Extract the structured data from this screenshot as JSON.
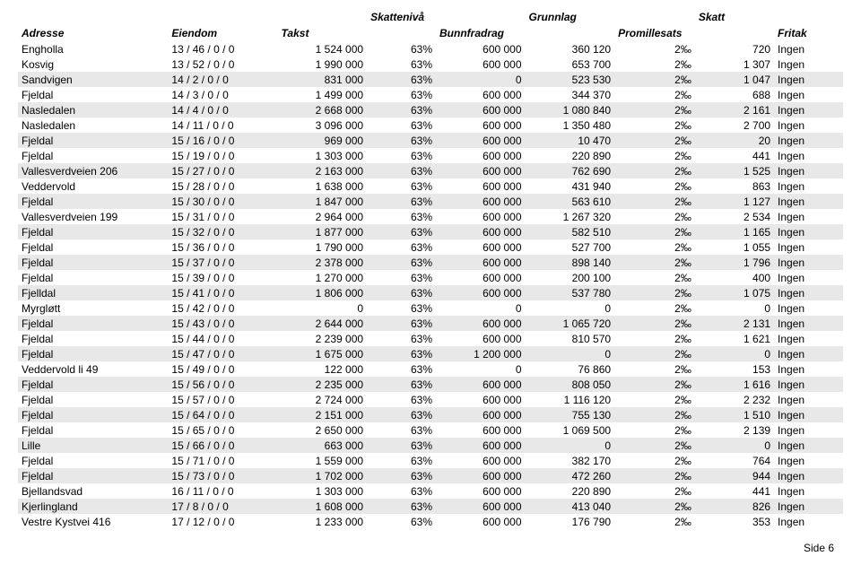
{
  "headers": {
    "row1": {
      "skattniva": "Skattenivå",
      "grunnlag": "Grunnlag",
      "skatt": "Skatt"
    },
    "row2": {
      "adresse": "Adresse",
      "eiendom": "Eiendom",
      "takst": "Takst",
      "bunnfradrag": "Bunnfradrag",
      "promillesats": "Promillesats",
      "fritak": "Fritak"
    }
  },
  "footer": "Side 6",
  "styling": {
    "font_family": "Arial",
    "font_size_pt": 9,
    "header_italic": true,
    "header_bold": true,
    "row_shade_color": "#e8e8e8",
    "background_color": "#ffffff",
    "text_color": "#000000"
  },
  "columns": [
    {
      "key": "adresse",
      "align": "left"
    },
    {
      "key": "eiendom",
      "align": "left"
    },
    {
      "key": "takst",
      "align": "right"
    },
    {
      "key": "skattniva",
      "align": "right"
    },
    {
      "key": "bunnfradrag",
      "align": "right"
    },
    {
      "key": "grunnlag",
      "align": "right"
    },
    {
      "key": "promille",
      "align": "right"
    },
    {
      "key": "skatt",
      "align": "right"
    },
    {
      "key": "fritak",
      "align": "left"
    }
  ],
  "rows": [
    {
      "shade": false,
      "adresse": "Engholla",
      "eiendom": "13 / 46 / 0 / 0",
      "takst": "1 524 000",
      "skattniva": "63%",
      "bunnfradrag": "600 000",
      "grunnlag": "360 120",
      "promille": "2‰",
      "skatt": "720",
      "fritak": "Ingen"
    },
    {
      "shade": false,
      "adresse": "Kosvig",
      "eiendom": "13 / 52 / 0 / 0",
      "takst": "1 990 000",
      "skattniva": "63%",
      "bunnfradrag": "600 000",
      "grunnlag": "653 700",
      "promille": "2‰",
      "skatt": "1 307",
      "fritak": "Ingen"
    },
    {
      "shade": true,
      "adresse": "Sandvigen",
      "eiendom": "14 / 2 / 0 / 0",
      "takst": "831 000",
      "skattniva": "63%",
      "bunnfradrag": "0",
      "grunnlag": "523 530",
      "promille": "2‰",
      "skatt": "1 047",
      "fritak": "Ingen"
    },
    {
      "shade": false,
      "adresse": "Fjeldal",
      "eiendom": "14 / 3 / 0 / 0",
      "takst": "1 499 000",
      "skattniva": "63%",
      "bunnfradrag": "600 000",
      "grunnlag": "344 370",
      "promille": "2‰",
      "skatt": "688",
      "fritak": "Ingen"
    },
    {
      "shade": true,
      "adresse": "Nasledalen",
      "eiendom": "14 / 4 / 0 / 0",
      "takst": "2 668 000",
      "skattniva": "63%",
      "bunnfradrag": "600 000",
      "grunnlag": "1 080 840",
      "promille": "2‰",
      "skatt": "2 161",
      "fritak": "Ingen"
    },
    {
      "shade": false,
      "adresse": "Nasledalen",
      "eiendom": "14 / 11 / 0 / 0",
      "takst": "3 096 000",
      "skattniva": "63%",
      "bunnfradrag": "600 000",
      "grunnlag": "1 350 480",
      "promille": "2‰",
      "skatt": "2 700",
      "fritak": "Ingen"
    },
    {
      "shade": true,
      "adresse": "Fjeldal",
      "eiendom": "15 / 16 / 0 / 0",
      "takst": "969 000",
      "skattniva": "63%",
      "bunnfradrag": "600 000",
      "grunnlag": "10 470",
      "promille": "2‰",
      "skatt": "20",
      "fritak": "Ingen"
    },
    {
      "shade": false,
      "adresse": "Fjeldal",
      "eiendom": "15 / 19 / 0 / 0",
      "takst": "1 303 000",
      "skattniva": "63%",
      "bunnfradrag": "600 000",
      "grunnlag": "220 890",
      "promille": "2‰",
      "skatt": "441",
      "fritak": "Ingen"
    },
    {
      "shade": true,
      "adresse": "Vallesverdveien 206",
      "eiendom": "15 / 27 / 0 / 0",
      "takst": "2 163 000",
      "skattniva": "63%",
      "bunnfradrag": "600 000",
      "grunnlag": "762 690",
      "promille": "2‰",
      "skatt": "1 525",
      "fritak": "Ingen"
    },
    {
      "shade": false,
      "adresse": "Veddervold",
      "eiendom": "15 / 28 / 0 / 0",
      "takst": "1 638 000",
      "skattniva": "63%",
      "bunnfradrag": "600 000",
      "grunnlag": "431 940",
      "promille": "2‰",
      "skatt": "863",
      "fritak": "Ingen"
    },
    {
      "shade": true,
      "adresse": "Fjeldal",
      "eiendom": "15 / 30 / 0 / 0",
      "takst": "1 847 000",
      "skattniva": "63%",
      "bunnfradrag": "600 000",
      "grunnlag": "563 610",
      "promille": "2‰",
      "skatt": "1 127",
      "fritak": "Ingen"
    },
    {
      "shade": false,
      "adresse": "Vallesverdveien 199",
      "eiendom": "15 / 31 / 0 / 0",
      "takst": "2 964 000",
      "skattniva": "63%",
      "bunnfradrag": "600 000",
      "grunnlag": "1 267 320",
      "promille": "2‰",
      "skatt": "2 534",
      "fritak": "Ingen"
    },
    {
      "shade": true,
      "adresse": "Fjeldal",
      "eiendom": "15 / 32 / 0 / 0",
      "takst": "1 877 000",
      "skattniva": "63%",
      "bunnfradrag": "600 000",
      "grunnlag": "582 510",
      "promille": "2‰",
      "skatt": "1 165",
      "fritak": "Ingen"
    },
    {
      "shade": false,
      "adresse": "Fjeldal",
      "eiendom": "15 / 36 / 0 / 0",
      "takst": "1 790 000",
      "skattniva": "63%",
      "bunnfradrag": "600 000",
      "grunnlag": "527 700",
      "promille": "2‰",
      "skatt": "1 055",
      "fritak": "Ingen"
    },
    {
      "shade": true,
      "adresse": "Fjeldal",
      "eiendom": "15 / 37 / 0 / 0",
      "takst": "2 378 000",
      "skattniva": "63%",
      "bunnfradrag": "600 000",
      "grunnlag": "898 140",
      "promille": "2‰",
      "skatt": "1 796",
      "fritak": "Ingen"
    },
    {
      "shade": false,
      "adresse": "Fjeldal",
      "eiendom": "15 / 39 / 0 / 0",
      "takst": "1 270 000",
      "skattniva": "63%",
      "bunnfradrag": "600 000",
      "grunnlag": "200 100",
      "promille": "2‰",
      "skatt": "400",
      "fritak": "Ingen"
    },
    {
      "shade": true,
      "adresse": "Fjelldal",
      "eiendom": "15 / 41 / 0 / 0",
      "takst": "1 806 000",
      "skattniva": "63%",
      "bunnfradrag": "600 000",
      "grunnlag": "537 780",
      "promille": "2‰",
      "skatt": "1 075",
      "fritak": "Ingen"
    },
    {
      "shade": false,
      "adresse": "Myrgløtt",
      "eiendom": "15 / 42 / 0 / 0",
      "takst": "0",
      "skattniva": "63%",
      "bunnfradrag": "0",
      "grunnlag": "0",
      "promille": "2‰",
      "skatt": "0",
      "fritak": "Ingen"
    },
    {
      "shade": true,
      "adresse": "Fjeldal",
      "eiendom": "15 / 43 / 0 / 0",
      "takst": "2 644 000",
      "skattniva": "63%",
      "bunnfradrag": "600 000",
      "grunnlag": "1 065 720",
      "promille": "2‰",
      "skatt": "2 131",
      "fritak": "Ingen"
    },
    {
      "shade": false,
      "adresse": "Fjeldal",
      "eiendom": "15 / 44 / 0 / 0",
      "takst": "2 239 000",
      "skattniva": "63%",
      "bunnfradrag": "600 000",
      "grunnlag": "810 570",
      "promille": "2‰",
      "skatt": "1 621",
      "fritak": "Ingen"
    },
    {
      "shade": true,
      "adresse": "Fjeldal",
      "eiendom": "15 / 47 / 0 / 0",
      "takst": "1 675 000",
      "skattniva": "63%",
      "bunnfradrag": "1 200 000",
      "grunnlag": "0",
      "promille": "2‰",
      "skatt": "0",
      "fritak": "Ingen"
    },
    {
      "shade": false,
      "adresse": "Veddervold li 49",
      "eiendom": "15 / 49 / 0 / 0",
      "takst": "122 000",
      "skattniva": "63%",
      "bunnfradrag": "0",
      "grunnlag": "76 860",
      "promille": "2‰",
      "skatt": "153",
      "fritak": "Ingen"
    },
    {
      "shade": true,
      "adresse": "Fjeldal",
      "eiendom": "15 / 56 / 0 / 0",
      "takst": "2 235 000",
      "skattniva": "63%",
      "bunnfradrag": "600 000",
      "grunnlag": "808 050",
      "promille": "2‰",
      "skatt": "1 616",
      "fritak": "Ingen"
    },
    {
      "shade": false,
      "adresse": "Fjeldal",
      "eiendom": "15 / 57 / 0 / 0",
      "takst": "2 724 000",
      "skattniva": "63%",
      "bunnfradrag": "600 000",
      "grunnlag": "1 116 120",
      "promille": "2‰",
      "skatt": "2 232",
      "fritak": "Ingen"
    },
    {
      "shade": true,
      "adresse": "Fjeldal",
      "eiendom": "15 / 64 / 0 / 0",
      "takst": "2 151 000",
      "skattniva": "63%",
      "bunnfradrag": "600 000",
      "grunnlag": "755 130",
      "promille": "2‰",
      "skatt": "1 510",
      "fritak": "Ingen"
    },
    {
      "shade": false,
      "adresse": "Fjeldal",
      "eiendom": "15 / 65 / 0 / 0",
      "takst": "2 650 000",
      "skattniva": "63%",
      "bunnfradrag": "600 000",
      "grunnlag": "1 069 500",
      "promille": "2‰",
      "skatt": "2 139",
      "fritak": "Ingen"
    },
    {
      "shade": true,
      "adresse": "Lille",
      "eiendom": "15 / 66 / 0 / 0",
      "takst": "663 000",
      "skattniva": "63%",
      "bunnfradrag": "600 000",
      "grunnlag": "0",
      "promille": "2‰",
      "skatt": "0",
      "fritak": "Ingen"
    },
    {
      "shade": false,
      "adresse": "Fjeldal",
      "eiendom": "15 / 71 / 0 / 0",
      "takst": "1 559 000",
      "skattniva": "63%",
      "bunnfradrag": "600 000",
      "grunnlag": "382 170",
      "promille": "2‰",
      "skatt": "764",
      "fritak": "Ingen"
    },
    {
      "shade": true,
      "adresse": "Fjeldal",
      "eiendom": "15 / 73 / 0 / 0",
      "takst": "1 702 000",
      "skattniva": "63%",
      "bunnfradrag": "600 000",
      "grunnlag": "472 260",
      "promille": "2‰",
      "skatt": "944",
      "fritak": "Ingen"
    },
    {
      "shade": false,
      "adresse": "Bjellandsvad",
      "eiendom": "16 / 11 / 0 / 0",
      "takst": "1 303 000",
      "skattniva": "63%",
      "bunnfradrag": "600 000",
      "grunnlag": "220 890",
      "promille": "2‰",
      "skatt": "441",
      "fritak": "Ingen"
    },
    {
      "shade": true,
      "adresse": "Kjerlingland",
      "eiendom": "17 / 8 / 0 / 0",
      "takst": "1 608 000",
      "skattniva": "63%",
      "bunnfradrag": "600 000",
      "grunnlag": "413 040",
      "promille": "2‰",
      "skatt": "826",
      "fritak": "Ingen"
    },
    {
      "shade": false,
      "adresse": "Vestre Kystvei 416",
      "eiendom": "17 / 12 / 0 / 0",
      "takst": "1 233 000",
      "skattniva": "63%",
      "bunnfradrag": "600 000",
      "grunnlag": "176 790",
      "promille": "2‰",
      "skatt": "353",
      "fritak": "Ingen"
    }
  ]
}
